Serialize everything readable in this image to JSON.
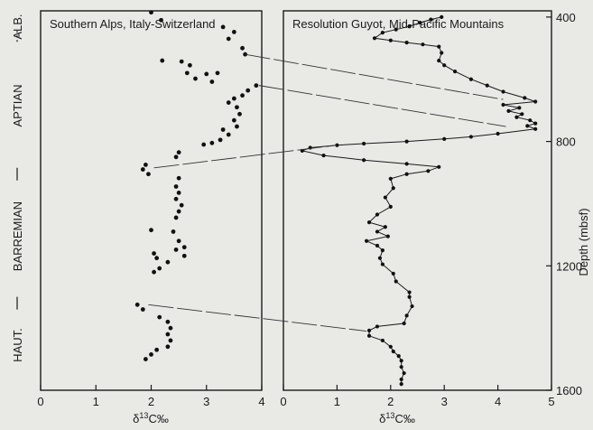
{
  "chart_data": [
    {
      "type": "scatter",
      "panel": "left",
      "title": "Southern Alps, Italy-Switzerland",
      "xlabel_main": "δ",
      "xlabel_sup": "13",
      "xlabel_rest": "C‰",
      "xlim": [
        0,
        4
      ],
      "xticks": [
        "0",
        "1",
        "2",
        "3",
        "4"
      ],
      "stages": [
        {
          "label": "ALB.",
          "y_from": 392,
          "y_to": 470
        },
        {
          "label": "APTIAN",
          "y_from": 470,
          "y_to": 900
        },
        {
          "label": "BARREMIAN",
          "y_from": 900,
          "y_to": 1310
        },
        {
          "label": "HAUT.",
          "y_from": 1310,
          "y_to": 1600
        }
      ],
      "stage_separators": [
        {
          "y": 465,
          "style": "dotted"
        },
        {
          "y": 905,
          "style": "solid"
        },
        {
          "y": 1320,
          "style": "solid"
        }
      ],
      "points": [
        {
          "x": 2.0,
          "y": 385
        },
        {
          "x": 2.18,
          "y": 410
        },
        {
          "x": 3.3,
          "y": 432
        },
        {
          "x": 3.5,
          "y": 448
        },
        {
          "x": 3.4,
          "y": 470
        },
        {
          "x": 3.65,
          "y": 500
        },
        {
          "x": 3.7,
          "y": 520
        },
        {
          "x": 2.2,
          "y": 540
        },
        {
          "x": 2.55,
          "y": 543
        },
        {
          "x": 2.7,
          "y": 555
        },
        {
          "x": 2.65,
          "y": 580
        },
        {
          "x": 3.0,
          "y": 583
        },
        {
          "x": 3.2,
          "y": 580
        },
        {
          "x": 2.8,
          "y": 598
        },
        {
          "x": 3.1,
          "y": 608
        },
        {
          "x": 3.9,
          "y": 620
        },
        {
          "x": 3.75,
          "y": 636
        },
        {
          "x": 3.65,
          "y": 652
        },
        {
          "x": 3.5,
          "y": 662
        },
        {
          "x": 3.4,
          "y": 675
        },
        {
          "x": 3.55,
          "y": 690
        },
        {
          "x": 3.6,
          "y": 712
        },
        {
          "x": 3.5,
          "y": 732
        },
        {
          "x": 3.55,
          "y": 752
        },
        {
          "x": 3.3,
          "y": 762
        },
        {
          "x": 3.4,
          "y": 778
        },
        {
          "x": 3.25,
          "y": 795
        },
        {
          "x": 3.1,
          "y": 805
        },
        {
          "x": 2.95,
          "y": 810
        },
        {
          "x": 2.5,
          "y": 835
        },
        {
          "x": 2.45,
          "y": 850
        },
        {
          "x": 1.9,
          "y": 875
        },
        {
          "x": 1.85,
          "y": 890
        },
        {
          "x": 1.95,
          "y": 905
        },
        {
          "x": 2.5,
          "y": 918
        },
        {
          "x": 2.45,
          "y": 945
        },
        {
          "x": 2.5,
          "y": 965
        },
        {
          "x": 2.45,
          "y": 985
        },
        {
          "x": 2.55,
          "y": 1005
        },
        {
          "x": 2.5,
          "y": 1025
        },
        {
          "x": 2.45,
          "y": 1045
        },
        {
          "x": 2.0,
          "y": 1085
        },
        {
          "x": 2.4,
          "y": 1090
        },
        {
          "x": 2.5,
          "y": 1120
        },
        {
          "x": 2.6,
          "y": 1140
        },
        {
          "x": 2.45,
          "y": 1148
        },
        {
          "x": 2.05,
          "y": 1160
        },
        {
          "x": 2.1,
          "y": 1175
        },
        {
          "x": 2.6,
          "y": 1168
        },
        {
          "x": 2.3,
          "y": 1188
        },
        {
          "x": 2.15,
          "y": 1208
        },
        {
          "x": 2.05,
          "y": 1220
        },
        {
          "x": 1.75,
          "y": 1325
        },
        {
          "x": 1.85,
          "y": 1340
        },
        {
          "x": 2.15,
          "y": 1365
        },
        {
          "x": 2.3,
          "y": 1380
        },
        {
          "x": 2.35,
          "y": 1400
        },
        {
          "x": 2.3,
          "y": 1420
        },
        {
          "x": 2.35,
          "y": 1440
        },
        {
          "x": 2.3,
          "y": 1460
        },
        {
          "x": 2.1,
          "y": 1470
        },
        {
          "x": 2.0,
          "y": 1485
        },
        {
          "x": 1.9,
          "y": 1500
        }
      ]
    },
    {
      "type": "line",
      "panel": "right",
      "title": "Resolution Guyot, Mid-Pacific Mountains",
      "xlabel_main": "δ",
      "xlabel_sup": "13",
      "xlabel_rest": "C‰",
      "ylabel": "Depth (mbsf)",
      "xlim": [
        0,
        5
      ],
      "ylim": [
        380,
        1600
      ],
      "y_inverted": true,
      "xticks": [
        "0",
        "1",
        "2",
        "3",
        "4",
        "5"
      ],
      "yticks": [
        400,
        800,
        1200,
        1600
      ],
      "points": [
        {
          "x": 2.95,
          "y": 400
        },
        {
          "x": 2.75,
          "y": 408
        },
        {
          "x": 2.55,
          "y": 418
        },
        {
          "x": 2.35,
          "y": 430
        },
        {
          "x": 2.1,
          "y": 440
        },
        {
          "x": 1.85,
          "y": 450
        },
        {
          "x": 1.7,
          "y": 468
        },
        {
          "x": 2.0,
          "y": 475
        },
        {
          "x": 2.3,
          "y": 482
        },
        {
          "x": 2.6,
          "y": 488
        },
        {
          "x": 2.9,
          "y": 495
        },
        {
          "x": 2.95,
          "y": 515
        },
        {
          "x": 2.9,
          "y": 540
        },
        {
          "x": 3.0,
          "y": 555
        },
        {
          "x": 3.2,
          "y": 575
        },
        {
          "x": 3.5,
          "y": 600
        },
        {
          "x": 3.8,
          "y": 620
        },
        {
          "x": 4.1,
          "y": 640
        },
        {
          "x": 4.5,
          "y": 660
        },
        {
          "x": 4.7,
          "y": 672
        },
        {
          "x": 4.1,
          "y": 682
        },
        {
          "x": 4.4,
          "y": 692
        },
        {
          "x": 4.2,
          "y": 702
        },
        {
          "x": 4.45,
          "y": 712
        },
        {
          "x": 4.35,
          "y": 722
        },
        {
          "x": 4.6,
          "y": 732
        },
        {
          "x": 4.7,
          "y": 742
        },
        {
          "x": 4.55,
          "y": 750
        },
        {
          "x": 4.7,
          "y": 760
        },
        {
          "x": 4.0,
          "y": 775
        },
        {
          "x": 3.5,
          "y": 785
        },
        {
          "x": 3.0,
          "y": 792
        },
        {
          "x": 2.3,
          "y": 800
        },
        {
          "x": 1.5,
          "y": 807
        },
        {
          "x": 1.0,
          "y": 812
        },
        {
          "x": 0.5,
          "y": 820
        },
        {
          "x": 0.35,
          "y": 830
        },
        {
          "x": 0.75,
          "y": 845
        },
        {
          "x": 1.5,
          "y": 860
        },
        {
          "x": 2.3,
          "y": 872
        },
        {
          "x": 2.9,
          "y": 882
        },
        {
          "x": 2.7,
          "y": 895
        },
        {
          "x": 2.3,
          "y": 905
        },
        {
          "x": 2.0,
          "y": 920
        },
        {
          "x": 2.05,
          "y": 950
        },
        {
          "x": 1.9,
          "y": 980
        },
        {
          "x": 2.0,
          "y": 1010
        },
        {
          "x": 1.75,
          "y": 1035
        },
        {
          "x": 1.6,
          "y": 1060
        },
        {
          "x": 1.9,
          "y": 1075
        },
        {
          "x": 1.75,
          "y": 1090
        },
        {
          "x": 1.95,
          "y": 1105
        },
        {
          "x": 1.55,
          "y": 1120
        },
        {
          "x": 1.75,
          "y": 1135
        },
        {
          "x": 1.85,
          "y": 1150
        },
        {
          "x": 1.8,
          "y": 1175
        },
        {
          "x": 1.85,
          "y": 1195
        },
        {
          "x": 2.05,
          "y": 1225
        },
        {
          "x": 2.1,
          "y": 1250
        },
        {
          "x": 2.35,
          "y": 1285
        },
        {
          "x": 2.35,
          "y": 1300
        },
        {
          "x": 2.4,
          "y": 1330
        },
        {
          "x": 2.3,
          "y": 1360
        },
        {
          "x": 2.25,
          "y": 1385
        },
        {
          "x": 1.75,
          "y": 1395
        },
        {
          "x": 1.6,
          "y": 1408
        },
        {
          "x": 1.6,
          "y": 1425
        },
        {
          "x": 1.85,
          "y": 1440
        },
        {
          "x": 2.0,
          "y": 1460
        },
        {
          "x": 2.05,
          "y": 1475
        },
        {
          "x": 2.15,
          "y": 1490
        },
        {
          "x": 2.2,
          "y": 1505
        },
        {
          "x": 2.2,
          "y": 1525
        },
        {
          "x": 2.25,
          "y": 1545
        },
        {
          "x": 2.2,
          "y": 1565
        },
        {
          "x": 2.2,
          "y": 1580
        }
      ]
    }
  ],
  "correlations": [
    {
      "from": {
        "x": 3.7,
        "y": 520
      },
      "to": {
        "x": 4.1,
        "y": 665
      }
    },
    {
      "from": {
        "x": 3.95,
        "y": 620
      },
      "to": {
        "x": 4.15,
        "y": 752
      }
    },
    {
      "from": {
        "x": 2.05,
        "y": 885
      },
      "to": {
        "x": 1.0,
        "y": 812
      }
    },
    {
      "from": {
        "x": 1.95,
        "y": 1325
      },
      "to": {
        "x": 1.55,
        "y": 1410
      }
    }
  ]
}
